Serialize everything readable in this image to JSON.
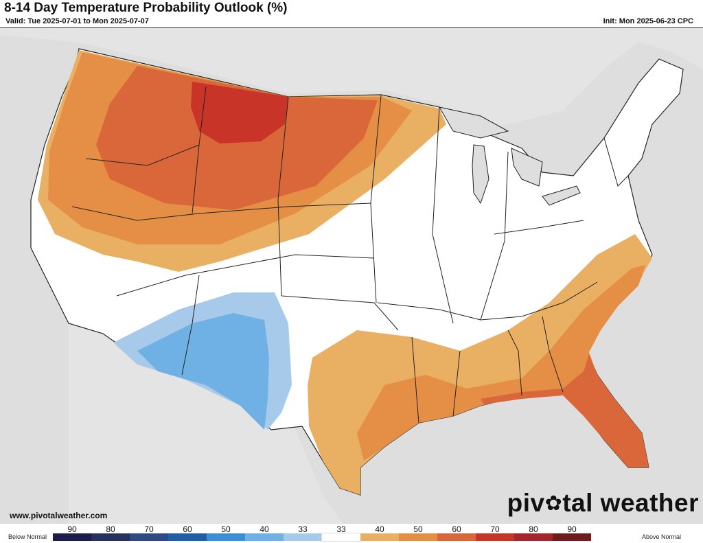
{
  "header": {
    "title": "8-14 Day Temperature Probability Outlook (%)",
    "valid": "Valid: Tue 2025-07-01 to Mon 2025-07-07",
    "init": "Init: Mon 2025-06-23 CPC"
  },
  "footer": {
    "website": "www.pivotalweather.com",
    "brand_left": "piv",
    "brand_right": "tal weather",
    "brand_icon": "gear-icon"
  },
  "legend": {
    "below_label": "Below Normal",
    "above_label": "Above Normal",
    "ticks": [
      "90",
      "80",
      "70",
      "60",
      "50",
      "40",
      "33",
      "33",
      "40",
      "50",
      "60",
      "70",
      "80",
      "90"
    ],
    "colors": [
      "#1c1c4e",
      "#27305f",
      "#2d4a85",
      "#1f5fa6",
      "#3b8fd7",
      "#6fb0e5",
      "#a7c9ea",
      "#ffffff",
      "#e9b063",
      "#e58e45",
      "#d9673a",
      "#c93428",
      "#a6242b",
      "#6e1c1e"
    ]
  },
  "map": {
    "land_color": "#ffffff",
    "water_color": "#dedede",
    "border_color": "#222222",
    "regions": [
      {
        "name": "above-40-west",
        "category": "Above 40",
        "color": "#e9b063"
      },
      {
        "name": "above-50-northwest",
        "category": "Above 50",
        "color": "#e58e45"
      },
      {
        "name": "above-60-northwest",
        "category": "Above 60",
        "color": "#d9673a"
      },
      {
        "name": "above-70-montana",
        "category": "Above 70",
        "color": "#c93428"
      },
      {
        "name": "below-33-southwest",
        "category": "Below 33",
        "color": "#a7c9ea"
      },
      {
        "name": "below-40-southwest",
        "category": "Below 40",
        "color": "#6fb0e5"
      },
      {
        "name": "above-40-southeast",
        "category": "Above 40",
        "color": "#e9b063"
      },
      {
        "name": "above-50-southeast",
        "category": "Above 50",
        "color": "#e58e45"
      },
      {
        "name": "above-60-florida",
        "category": "Above 60",
        "color": "#d9673a"
      }
    ]
  }
}
